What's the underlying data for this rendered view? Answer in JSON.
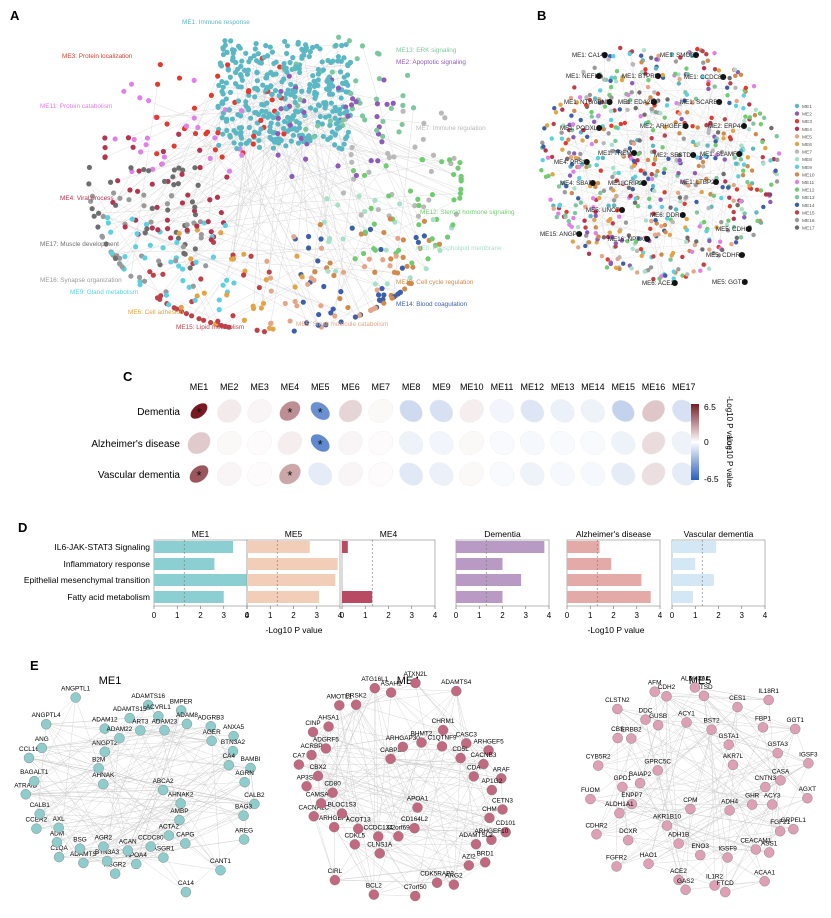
{
  "panels": {
    "A": {
      "letter": "A",
      "modules": [
        {
          "label": "ME1: Immune response",
          "color": "#5bb7c4"
        },
        {
          "label": "ME2: Apoptotic signaling",
          "color": "#8e5bb8"
        },
        {
          "label": "ME3: Protein localization",
          "color": "#e23b2e"
        },
        {
          "label": "ME4: Viral process",
          "color": "#b5344f"
        },
        {
          "label": "ME5: Small molecule catabolism",
          "color": "#e5a587"
        },
        {
          "label": "ME6: Cell adhesion",
          "color": "#e2a445"
        },
        {
          "label": "ME7: Immune regulation",
          "color": "#b9b9b9"
        },
        {
          "label": "ME8: Phospholipid membrane",
          "color": "#a8e0c8"
        },
        {
          "label": "ME9: Gland metabolism",
          "color": "#5ad0e0"
        },
        {
          "label": "ME10: Cell cycle regulation",
          "color": "#d08a4c"
        },
        {
          "label": "ME11: Protein catabolism",
          "color": "#e080e8"
        },
        {
          "label": "ME12: Steroid hormone signaling",
          "color": "#70cc70"
        },
        {
          "label": "ME13: ERK signaling",
          "color": "#7dc79e"
        },
        {
          "label": "ME14: Blood coagulation",
          "color": "#3b5fa8"
        },
        {
          "label": "ME15: Lipid metabolism",
          "color": "#c0404a"
        },
        {
          "label": "ME16: Synapse organization",
          "color": "#9a9a9a"
        },
        {
          "label": "ME17: Muscle development",
          "color": "#6e6e6e"
        }
      ]
    },
    "B": {
      "letter": "B",
      "legend": [
        "ME1",
        "ME2",
        "ME3",
        "ME4",
        "ME5",
        "ME6",
        "ME7",
        "ME8",
        "ME9",
        "ME10",
        "ME11",
        "ME12",
        "ME13",
        "ME14",
        "ME15",
        "ME16",
        "ME17"
      ],
      "genes": [
        "ME1: CA14",
        "ME1: SMOC1",
        "ME1: NEFL",
        "ME1: BTPR8",
        "ME1: CCDC80",
        "ME1: NTproBNP",
        "ME1: EDA2R",
        "ME1: SCARB2",
        "ME2: ARHGEF12",
        "ME2: ERP44",
        "ME1: PODXL2",
        "ME1: TREM2",
        "ME2: SESTD1",
        "ME1: SLAMF8",
        "ME4: PRSS",
        "ME1: CRIP2",
        "ME1: LTBP2",
        "ME4: SBAP",
        "ME5: UNC79",
        "ME6: DDR1",
        "ME15: ANGPT",
        "ME16: NPTXR",
        "ME5: CDH2",
        "ME5: CDHR2",
        "ME6: ACE2",
        "ME5: GGT1"
      ]
    },
    "C": {
      "letter": "C",
      "rows": [
        "Dementia",
        "Alzheimer's disease",
        "Vascular dementia"
      ],
      "cols": [
        "ME1",
        "ME2",
        "ME3",
        "ME4",
        "ME5",
        "ME6",
        "ME7",
        "ME8",
        "ME9",
        "ME10",
        "ME11",
        "ME12",
        "ME13",
        "ME14",
        "ME15",
        "ME16",
        "ME17"
      ],
      "values": [
        [
          6.5,
          0.6,
          0.3,
          3.2,
          -4.5,
          1.2,
          0.2,
          -1.5,
          -1.2,
          0.5,
          -0.4,
          -1.0,
          -0.6,
          -0.5,
          -1.8,
          1.6,
          -1.2
        ],
        [
          1.5,
          0.2,
          0.1,
          0.5,
          -4.8,
          0.3,
          0.1,
          -0.5,
          -0.4,
          0.2,
          -0.2,
          -0.3,
          -0.2,
          -0.2,
          -0.5,
          1.0,
          -0.5
        ],
        [
          4.8,
          0.3,
          0.1,
          2.5,
          -0.8,
          0.3,
          0.1,
          -0.9,
          -0.6,
          0.2,
          -0.2,
          -0.5,
          -0.3,
          -0.3,
          -0.8,
          0.9,
          -0.8
        ]
      ],
      "stars": [
        [
          0,
          0
        ],
        [
          0,
          3
        ],
        [
          0,
          4
        ],
        [
          1,
          4
        ],
        [
          2,
          0
        ],
        [
          2,
          3
        ]
      ],
      "star_glyph": "*",
      "colorbar": {
        "max": "6.5",
        "mid": "0",
        "min": "-6.5",
        "top_label": "-Log10 P value",
        "bottom_label": "Log10 P value"
      }
    },
    "D": {
      "letter": "D",
      "pathways": [
        "IL6-JAK-STAT3 Signaling",
        "Inflammatory response",
        "Epithelial mesenchymal transition",
        "Fatty acid metabolism"
      ],
      "groups": [
        {
          "title": "ME1",
          "color": "#8ccfd3",
          "values": [
            3.4,
            2.6,
            4.0,
            3.0
          ]
        },
        {
          "title": "ME5",
          "color": "#f2cdb8",
          "values": [
            2.7,
            3.9,
            3.8,
            3.1
          ]
        },
        {
          "title": "ME4",
          "color": "#b94a63",
          "values": [
            0.25,
            0,
            0,
            1.3
          ]
        },
        {
          "title": "Dementia",
          "color": "#b99ac4",
          "values": [
            3.8,
            2.0,
            2.8,
            2.0
          ]
        },
        {
          "title": "Alzheimer's disease",
          "color": "#e3aaa8",
          "values": [
            1.4,
            1.9,
            3.2,
            3.6
          ]
        },
        {
          "title": "Vascular dementia",
          "color": "#d3e7f4",
          "values": [
            1.9,
            1.0,
            1.8,
            0.9
          ]
        }
      ],
      "ticks": [
        "0",
        "1",
        "2",
        "3",
        "4"
      ],
      "xlabel": "-Log10 P value"
    },
    "E": {
      "letter": "E",
      "networks": [
        {
          "title": "ME1",
          "color": "#8fcccc",
          "genes": [
            "ABCA2",
            "C1QA",
            "ADAMTS16",
            "CAPG",
            "AHNAK",
            "ANXA5",
            "ASGR2",
            "ADAM12",
            "AHNAK2",
            "CCER2",
            "BMPER",
            "ASGR1",
            "B2M",
            "BAMBI",
            "ADAMTS",
            "ADAMTS15",
            "AMBP",
            "ATRAID",
            "ADGRB3",
            "APOA4",
            "ANGPT2",
            "CALB2",
            "ADM",
            "ACVRL1",
            "ACTA2",
            "CCL16",
            "BTN3A2",
            "BTN3A3",
            "ADAM22",
            "AREG",
            "CALB1",
            "ADAM8",
            "CCDC80",
            "ANGPTL4",
            "AGRN",
            "BSG",
            "ART3",
            "CANT1",
            "BAGALT1",
            "AGER",
            "ACAN",
            "ANGPTL1",
            "BAG3",
            "AXL",
            "ADAM23",
            "CA14",
            "ANG",
            "CA4",
            "AGR2"
          ]
        },
        {
          "title": "ME4",
          "color": "#c26880",
          "genes": [
            "APOA1",
            "CA7",
            "ARHGEF5",
            "CLNS1A",
            "CABP2",
            "CD101",
            "CACNA1C",
            "CHRM1",
            "CD164L2",
            "CINP",
            "ARAF",
            "CDKL5",
            "ARHGAP30",
            "BRD1",
            "AP3S2",
            "CASC3",
            "C2orf69",
            "AMOTL1",
            "CETN3",
            "ARHGEF1",
            "BHMT2",
            "ARG2",
            "ACRBP",
            "CACNB3",
            "CCDC134",
            "ATG16L1",
            "ARHGEF10",
            "CAMSAP1",
            "C1QTNF9",
            "C7orf50",
            "AHSA1",
            "AP1G2",
            "ACOT13",
            "ATXN2L",
            "AZI2",
            "CBX2",
            "CD5L",
            "BCL2",
            "BRSK2",
            "CHM",
            "BLOC1S3",
            "ADAMTS4",
            "CDK5RAP3",
            "ADGRF5",
            "CDA",
            "CIRL",
            "ASAH1",
            "ADAMTSL2",
            "CD80"
          ]
        },
        {
          "title": "ME5",
          "color": "#dea0b4",
          "genes": [
            "CPM",
            "CDH2",
            "FGF21",
            "ENPP7",
            "IL18R1",
            "IL1R2",
            "ERBB2",
            "CNTN3",
            "FGFR2",
            "CTSD",
            "CEACAM1",
            "BAIAP2",
            "GGT1",
            "ACE2",
            "GUSB",
            "GHR",
            "CDHR2",
            "CES1",
            "IGSF9",
            "GPRC5C",
            "IGSF3",
            "HAO1",
            "ACY1",
            "ADH4",
            "FUOM",
            "FBP1",
            "ENO3",
            "CLSTN2",
            "AGXT",
            "DCXR",
            "BST2",
            "ACAA1",
            "CYB5R2",
            "GSTA3",
            "ADH1B",
            "AFM",
            "GRPEL1",
            "ALDH1A1",
            "GSTA1",
            "FTCD",
            "CBS",
            "CASA",
            "AKR1B10",
            "ALDH3A1",
            "ASS1",
            "GPD1",
            "AKR7L",
            "GAS2",
            "DDC",
            "ACY3"
          ]
        }
      ]
    }
  }
}
